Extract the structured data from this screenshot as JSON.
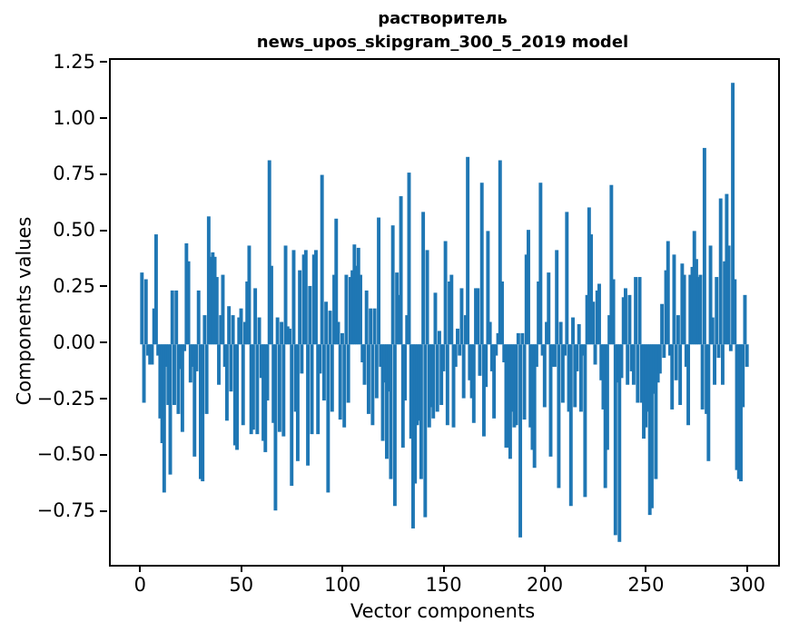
{
  "title": {
    "line1": "растворитель",
    "line2": "news_upos_skipgram_300_5_2019 model"
  },
  "chart_data": {
    "type": "bar",
    "title": "растворитель\nnews_upos_skipgram_300_5_2019 model",
    "xlabel": "Vector components",
    "ylabel": "Components values",
    "bar_color": "#1f77b4",
    "background_color": "#ffffff",
    "grid": false,
    "legend": null,
    "xlim": [
      -15.4,
      314.4
    ],
    "ylim": [
      -0.982,
      1.267
    ],
    "bar_width_data_units": 0.8,
    "x_ticks": [
      {
        "value": 0,
        "label": "0"
      },
      {
        "value": 50,
        "label": "50"
      },
      {
        "value": 100,
        "label": "100"
      },
      {
        "value": 150,
        "label": "150"
      },
      {
        "value": 200,
        "label": "200"
      },
      {
        "value": 250,
        "label": "250"
      },
      {
        "value": 300,
        "label": "300"
      }
    ],
    "y_ticks": [
      {
        "value": 1.25,
        "label": "1.25"
      },
      {
        "value": 1.0,
        "label": "1.00"
      },
      {
        "value": 0.75,
        "label": "0.75"
      },
      {
        "value": 0.5,
        "label": "0.50"
      },
      {
        "value": 0.25,
        "label": "0.25"
      },
      {
        "value": 0.0,
        "label": "0.00"
      },
      {
        "value": -0.25,
        "label": "−0.25"
      },
      {
        "value": -0.5,
        "label": "−0.50"
      },
      {
        "value": -0.75,
        "label": "−0.75"
      }
    ],
    "x_start": 0,
    "values": [
      0.32,
      -0.26,
      0.29,
      -0.05,
      -0.09,
      -0.09,
      0.16,
      0.49,
      -0.05,
      -0.33,
      -0.44,
      -0.66,
      -0.1,
      -0.27,
      -0.58,
      0.24,
      -0.27,
      0.24,
      -0.31,
      -0.11,
      -0.39,
      -0.03,
      0.45,
      0.37,
      -0.17,
      -0.1,
      -0.5,
      -0.12,
      0.24,
      -0.6,
      -0.61,
      0.13,
      -0.31,
      0.57,
      0.39,
      0.41,
      0.39,
      0.3,
      -0.18,
      0.13,
      0.31,
      -0.1,
      -0.34,
      0.17,
      -0.21,
      0.13,
      -0.45,
      -0.47,
      0.12,
      0.16,
      -0.36,
      0.1,
      0.28,
      0.44,
      -0.4,
      -0.38,
      0.25,
      -0.4,
      0.12,
      -0.15,
      -0.43,
      -0.48,
      -0.25,
      0.82,
      0.35,
      -0.35,
      -0.74,
      0.12,
      -0.39,
      0.1,
      -0.41,
      0.44,
      0.08,
      0.07,
      -0.63,
      0.42,
      -0.3,
      -0.52,
      0.33,
      -0.13,
      0.4,
      0.42,
      -0.54,
      0.26,
      -0.4,
      0.4,
      0.42,
      -0.4,
      -0.13,
      0.755,
      -0.25,
      0.19,
      -0.66,
      0.15,
      -0.3,
      0.31,
      0.56,
      0.1,
      -0.335,
      0.05,
      -0.37,
      0.31,
      -0.26,
      0.3,
      0.33,
      0.445,
      0.35,
      0.43,
      0.31,
      -0.08,
      -0.18,
      0.24,
      -0.31,
      0.16,
      -0.36,
      0.16,
      -0.24,
      0.565,
      -0.1,
      -0.43,
      -0.17,
      -0.51,
      -0.21,
      -0.6,
      0.53,
      -0.72,
      0.32,
      0.22,
      0.66,
      -0.46,
      -0.25,
      0.13,
      0.765,
      -0.42,
      -0.82,
      -0.62,
      -0.36,
      -0.34,
      -0.6,
      0.59,
      -0.77,
      0.42,
      -0.37,
      -0.28,
      -0.33,
      0.23,
      -0.3,
      0.06,
      -0.27,
      -0.12,
      0.46,
      -0.36,
      0.28,
      0.31,
      -0.37,
      -0.1,
      0.07,
      -0.05,
      0.25,
      -0.24,
      0.13,
      0.835,
      -0.16,
      -0.24,
      -0.35,
      0.25,
      0.25,
      -0.14,
      0.72,
      -0.41,
      -0.19,
      0.505,
      0.1,
      -0.12,
      -0.33,
      -0.05,
      0.05,
      0.82,
      0.28,
      -0.08,
      -0.46,
      -0.46,
      -0.51,
      -0.3,
      -0.37,
      -0.36,
      0.05,
      -0.86,
      0.05,
      -0.335,
      0.4,
      0.51,
      -0.37,
      -0.47,
      -0.55,
      -0.1,
      0.28,
      0.72,
      -0.05,
      -0.28,
      0.1,
      0.32,
      -0.5,
      -0.1,
      -0.1,
      0.42,
      -0.64,
      0.1,
      -0.26,
      -0.05,
      0.59,
      -0.3,
      -0.72,
      0.12,
      -0.28,
      -0.12,
      0.09,
      -0.3,
      -0.05,
      -0.68,
      0.22,
      0.61,
      0.49,
      0.19,
      -0.09,
      0.24,
      0.27,
      -0.16,
      -0.29,
      -0.64,
      -0.47,
      0.13,
      0.71,
      0.29,
      -0.85,
      -0.17,
      -0.88,
      -0.15,
      0.21,
      0.25,
      -0.18,
      0.22,
      -0.12,
      -0.18,
      0.3,
      -0.26,
      0.3,
      -0.26,
      -0.42,
      -0.37,
      -0.3,
      -0.76,
      -0.73,
      -0.22,
      -0.6,
      -0.17,
      -0.13,
      0.18,
      -0.06,
      0.33,
      0.46,
      -0.05,
      -0.29,
      0.4,
      -0.16,
      0.13,
      -0.27,
      0.36,
      0.31,
      -0.1,
      -0.36,
      0.31,
      0.345,
      0.505,
      0.38,
      0.3,
      0.31,
      -0.29,
      0.875,
      -0.31,
      -0.52,
      0.44,
      0.12,
      -0.18,
      0.3,
      -0.06,
      0.65,
      -0.18,
      0.37,
      0.67,
      0.44,
      -0.03,
      1.165,
      0.29,
      -0.56,
      -0.6,
      -0.61,
      -0.28,
      0.22,
      -0.1
    ]
  }
}
